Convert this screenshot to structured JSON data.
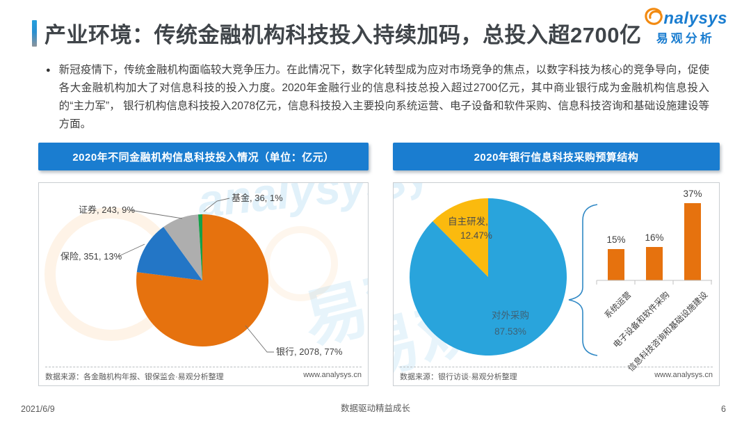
{
  "header": {
    "title": "产业环境：传统金融机构科技投入持续加码，总投入超2700亿",
    "logo": {
      "brand_suffix": "nalysys",
      "brand_cn": "易观分析"
    }
  },
  "intro": {
    "bullet": "●",
    "text": "新冠疫情下，传统金融机构面临较大竞争压力。在此情况下，数字化转型成为应对市场竞争的焦点，以数字科技为核心的竞争导向，促使各大金融机构加大了对信息科技的投入力度。2020年金融行业的信息科技总投入超过2700亿元，其中商业银行成为金融机构信息投入的“主力军”， 银行机构信息科技投入2078亿元，信息科技投入主要投向系统运营、电子设备和软件采购、信息科技咨询和基础设施建设等方面。"
  },
  "left_panel": {
    "banner": "2020年不同金融机构信息科技投入情况（单位：亿元）",
    "source": "数据来源：各金融机构年报、银保监会·易观分析整理",
    "site": "www.analysys.cn"
  },
  "right_panel": {
    "banner": "2020年银行信息科技采购预算结构",
    "source": "数据来源：银行访谈·易观分析整理",
    "site": "www.analysys.cn"
  },
  "watermark": {
    "brand": "analysys",
    "brand_cn": "易观"
  },
  "footer": {
    "date": "2021/6/9",
    "slogan": "数据驱动精益成长",
    "page": "6"
  },
  "chart_data": [
    {
      "type": "pie",
      "title": "2020年不同金融机构信息科技投入情况",
      "unit": "亿元",
      "start_angle": "12-oclock",
      "direction": "clockwise",
      "slices": [
        {
          "name": "银行",
          "value": 2078,
          "pct": 77,
          "color": "#e6720e",
          "display": "银行, 2078, 77%"
        },
        {
          "name": "保险",
          "value": 351,
          "pct": 13,
          "color": "#2376c6",
          "display": "保险, 351, 13%"
        },
        {
          "name": "证券",
          "value": 243,
          "pct": 9,
          "color": "#aeaeae",
          "display": "证券, 243, 9%"
        },
        {
          "name": "基金",
          "value": 36,
          "pct": 1,
          "color": "#16a049",
          "display": "基金, 36, 1%"
        }
      ]
    },
    {
      "type": "pie",
      "title": "2020年银行信息科技采购预算结构",
      "start_angle": "12-oclock",
      "direction": "clockwise",
      "slices": [
        {
          "name": "对外采购",
          "pct": 87.53,
          "color": "#29a4dc",
          "display_name": "对外采购",
          "display_pct": "87.53%"
        },
        {
          "name": "自主研发",
          "pct": 12.47,
          "color": "#fbba0e",
          "display_name": "自主研发,",
          "display_pct": "12.47%"
        }
      ]
    },
    {
      "type": "bar",
      "categories": [
        "系统运营",
        "电子设备和软件采购",
        "信息科技咨询和基础设施建设"
      ],
      "values": [
        15,
        16,
        37
      ],
      "labels": [
        "15%",
        "16%",
        "37%"
      ],
      "bar_color": "#e6720e",
      "ylim": [
        0,
        40
      ],
      "grid": false
    }
  ]
}
